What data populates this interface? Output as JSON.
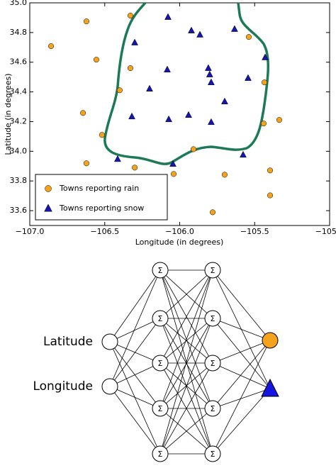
{
  "chart_data": {
    "type": "scatter",
    "xlabel": "Longitude (in degrees)",
    "ylabel": "Latitude (in degrees)",
    "xlim": [
      -107,
      -105
    ],
    "ylim": [
      33.5,
      35
    ],
    "xticks": [
      {
        "value": -107,
        "label": "−107.0"
      },
      {
        "value": -106.5,
        "label": "−106.5"
      },
      {
        "value": -106,
        "label": "−106.0"
      },
      {
        "value": -105.5,
        "label": "−105.5"
      },
      {
        "value": -105,
        "label": "−105.0"
      }
    ],
    "yticks": [
      33.6,
      33.8,
      {
        "value": 34,
        "label": "34.0"
      },
      34.2,
      34.4,
      34.6,
      34.8,
      {
        "value": 35,
        "label": "35.0"
      }
    ],
    "legend": "lower left",
    "series": [
      {
        "name": "Towns reporting rain",
        "color": "#f5a21c",
        "marker": "circle",
        "x": [
          -106.858,
          -106.622,
          -106.329,
          -106.556,
          -106.329,
          -106.4,
          -106.645,
          -106.518,
          -106.622,
          -106.3,
          -106.04,
          -105.908,
          -105.7,
          -105.539,
          -105.435,
          -105.44,
          -105.336,
          -105.397,
          -105.397,
          -105.78
        ],
        "values": [
          34.708,
          34.875,
          34.914,
          34.617,
          34.56,
          34.411,
          34.258,
          34.11,
          33.919,
          33.89,
          33.847,
          34.014,
          33.842,
          34.77,
          34.464,
          34.187,
          34.211,
          33.871,
          33.703,
          33.589
        ]
      },
      {
        "name": "Towns reporting snow",
        "color": "#1515b0",
        "marker": "triangle",
        "x": [
          -106.078,
          -105.922,
          -105.865,
          -105.634,
          -106.3,
          -106.083,
          -105.809,
          -105.8,
          -105.79,
          -105.43,
          -105.544,
          -106.201,
          -105.7,
          -106.319,
          -106.073,
          -105.941,
          -105.79,
          -106.414,
          -106.045,
          -105.577
        ],
        "values": [
          34.904,
          34.813,
          34.785,
          34.823,
          34.732,
          34.55,
          34.56,
          34.517,
          34.464,
          34.632,
          34.493,
          34.421,
          34.335,
          34.234,
          34.215,
          34.244,
          34.196,
          33.947,
          33.914,
          33.976
        ]
      }
    ]
  },
  "diagram": {
    "inputs": [
      "Latitude",
      "Longitude"
    ],
    "hidden_symbol": "Σ"
  }
}
